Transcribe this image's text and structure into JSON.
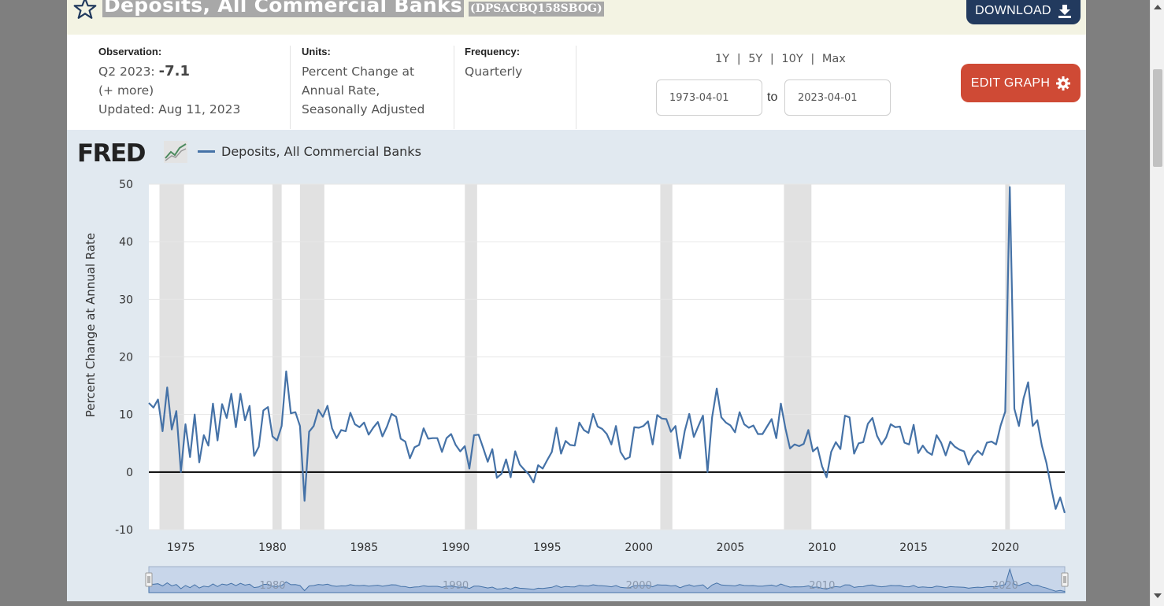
{
  "header": {
    "title": "Deposits, All Commercial Banks",
    "series_id": "(DPSACBQ158SBOG)",
    "download_label": "DOWNLOAD"
  },
  "meta": {
    "observation_label": "Observation:",
    "observation_period": "Q2 2023:",
    "observation_value": "-7.1",
    "more_label": "(+ more)",
    "updated": "Updated: Aug 11, 2023",
    "units_label": "Units:",
    "units_lines": [
      "Percent Change at",
      "Annual Rate,",
      "Seasonally Adjusted"
    ],
    "frequency_label": "Frequency:",
    "frequency_value": "Quarterly"
  },
  "controls": {
    "range_1y": "1Y",
    "range_5y": "5Y",
    "range_10y": "10Y",
    "range_max": "Max",
    "separator": "|",
    "start_date": "1973-04-01",
    "to_label": "to",
    "end_date": "2023-04-01",
    "edit_graph_label": "EDIT GRAPH"
  },
  "colors": {
    "series_line": "#4572a7",
    "recession_band": "#e1e1e1",
    "download_bg": "#223a5e",
    "edit_bg": "#cf4a35"
  },
  "icons": [
    "star-icon",
    "download-icon",
    "gear-icon",
    "fred-logo-icon"
  ],
  "chart_data": {
    "type": "line",
    "logo_text": "FRED",
    "legend": "Deposits, All Commercial Banks",
    "ylabel": "Percent Change at Annual Rate",
    "ylim": [
      -10,
      50
    ],
    "yticks": [
      -10,
      0,
      10,
      20,
      30,
      40,
      50
    ],
    "xlim": [
      1973.25,
      2023.25
    ],
    "xticks": [
      1975,
      1980,
      1985,
      1990,
      1995,
      2000,
      2005,
      2010,
      2015,
      2020
    ],
    "navigator_labels": [
      "1980",
      "1990",
      "2000",
      "2010",
      "2020"
    ],
    "recessions": [
      [
        1973.83,
        1975.17
      ],
      [
        1980.0,
        1980.5
      ],
      [
        1981.5,
        1982.83
      ],
      [
        1990.5,
        1991.17
      ],
      [
        2001.17,
        2001.83
      ],
      [
        2007.92,
        2009.42
      ],
      [
        2020.0,
        2020.25
      ]
    ],
    "series": [
      {
        "name": "Deposits, All Commercial Banks",
        "x": [
          1973.25,
          1973.5,
          1973.75,
          1974,
          1974.25,
          1974.5,
          1974.75,
          1975,
          1975.25,
          1975.5,
          1975.75,
          1976,
          1976.25,
          1976.5,
          1976.75,
          1977,
          1977.25,
          1977.5,
          1977.75,
          1978,
          1978.25,
          1978.5,
          1978.75,
          1979,
          1979.25,
          1979.5,
          1979.75,
          1980,
          1980.25,
          1980.5,
          1980.75,
          1981,
          1981.25,
          1981.5,
          1981.75,
          1982,
          1982.25,
          1982.5,
          1982.75,
          1983,
          1983.25,
          1983.5,
          1983.75,
          1984,
          1984.25,
          1984.5,
          1984.75,
          1985,
          1985.25,
          1985.5,
          1985.75,
          1986,
          1986.25,
          1986.5,
          1986.75,
          1987,
          1987.25,
          1987.5,
          1987.75,
          1988,
          1988.25,
          1988.5,
          1988.75,
          1989,
          1989.25,
          1989.5,
          1989.75,
          1990,
          1990.25,
          1990.5,
          1990.75,
          1991,
          1991.25,
          1991.5,
          1991.75,
          1992,
          1992.25,
          1992.5,
          1992.75,
          1993,
          1993.25,
          1993.5,
          1993.75,
          1994,
          1994.25,
          1994.5,
          1994.75,
          1995,
          1995.25,
          1995.5,
          1995.75,
          1996,
          1996.25,
          1996.5,
          1996.75,
          1997,
          1997.25,
          1997.5,
          1997.75,
          1998,
          1998.25,
          1998.5,
          1998.75,
          1999,
          1999.25,
          1999.5,
          1999.75,
          2000,
          2000.25,
          2000.5,
          2000.75,
          2001,
          2001.25,
          2001.5,
          2001.75,
          2002,
          2002.25,
          2002.5,
          2002.75,
          2003,
          2003.25,
          2003.5,
          2003.75,
          2004,
          2004.25,
          2004.5,
          2004.75,
          2005,
          2005.25,
          2005.5,
          2005.75,
          2006,
          2006.25,
          2006.5,
          2006.75,
          2007,
          2007.25,
          2007.5,
          2007.75,
          2008,
          2008.25,
          2008.5,
          2008.75,
          2009,
          2009.25,
          2009.5,
          2009.75,
          2010,
          2010.25,
          2010.5,
          2010.75,
          2011,
          2011.25,
          2011.5,
          2011.75,
          2012,
          2012.25,
          2012.5,
          2012.75,
          2013,
          2013.25,
          2013.5,
          2013.75,
          2014,
          2014.25,
          2014.5,
          2014.75,
          2015,
          2015.25,
          2015.5,
          2015.75,
          2016,
          2016.25,
          2016.5,
          2016.75,
          2017,
          2017.25,
          2017.5,
          2017.75,
          2018,
          2018.25,
          2018.5,
          2018.75,
          2019,
          2019.25,
          2019.5,
          2019.75,
          2020,
          2020.25,
          2020.5,
          2020.75,
          2021,
          2021.25,
          2021.5,
          2021.75,
          2022,
          2022.25,
          2022.5,
          2022.75,
          2023,
          2023.25
        ],
        "values": [
          12,
          11.2,
          12.6,
          7.1,
          14.7,
          7.4,
          10.6,
          0,
          8.3,
          2.6,
          10,
          1.7,
          6.4,
          4.6,
          11.9,
          5.5,
          11.8,
          9.4,
          13.6,
          7.8,
          13.6,
          9,
          11.5,
          2.8,
          4.4,
          10.7,
          11.3,
          6.2,
          5.5,
          8,
          17.5,
          10.2,
          10.4,
          8,
          -5,
          7,
          8,
          10.8,
          9.6,
          11.5,
          7.6,
          5.9,
          7.3,
          7.1,
          10.3,
          8.3,
          7.8,
          8.6,
          6.5,
          7.7,
          8.7,
          6.2,
          7.9,
          10.1,
          9.6,
          5.8,
          5.3,
          2.4,
          4.3,
          4.7,
          7.6,
          5.8,
          5.9,
          5.9,
          3.5,
          5.9,
          6.6,
          4.7,
          3.6,
          4.5,
          0.6,
          6.4,
          6.5,
          4.2,
          1.8,
          4,
          -1,
          -0.3,
          2.2,
          -0.9,
          3.6,
          1.3,
          0.4,
          -0.4,
          -1.8,
          1.2,
          0.6,
          2.1,
          3.5,
          7.7,
          3.2,
          5.4,
          4.7,
          4.6,
          8.6,
          7.3,
          6.8,
          10.1,
          7.9,
          7.5,
          6.6,
          4.8,
          8,
          3.5,
          2.2,
          2.6,
          7.8,
          7.7,
          8,
          8.8,
          4.8,
          9.9,
          9.3,
          9.2,
          7,
          8,
          2.4,
          7.1,
          10.1,
          6.1,
          8,
          9.8,
          0,
          9.5,
          14.5,
          9.5,
          8.6,
          8.1,
          6.9,
          10.4,
          8.3,
          7.7,
          8.1,
          6.6,
          6.6,
          7.9,
          9.2,
          5.9,
          11.9,
          7.6,
          4.1,
          4.8,
          4.5,
          4.9,
          7.3,
          3.6,
          4.3,
          1,
          -0.9,
          3.5,
          5.2,
          4,
          9.8,
          9.5,
          3.2,
          5,
          5.2,
          8.4,
          9.4,
          6.3,
          4.8,
          6,
          8.3,
          7.8,
          7.9,
          5.1,
          4.8,
          8.2,
          3.3,
          4.6,
          3.5,
          3,
          6.4,
          5.1,
          2.9,
          5.3,
          4.4,
          3.9,
          3.6,
          1.3,
          2.8,
          3.7,
          3,
          5.1,
          5.3,
          4.8,
          8.1,
          10.5,
          49.5,
          11,
          8,
          12.8,
          15.6,
          8,
          9,
          4.6,
          1.6,
          -2.6,
          -6.4,
          -4.4,
          -7.1
        ]
      }
    ]
  }
}
